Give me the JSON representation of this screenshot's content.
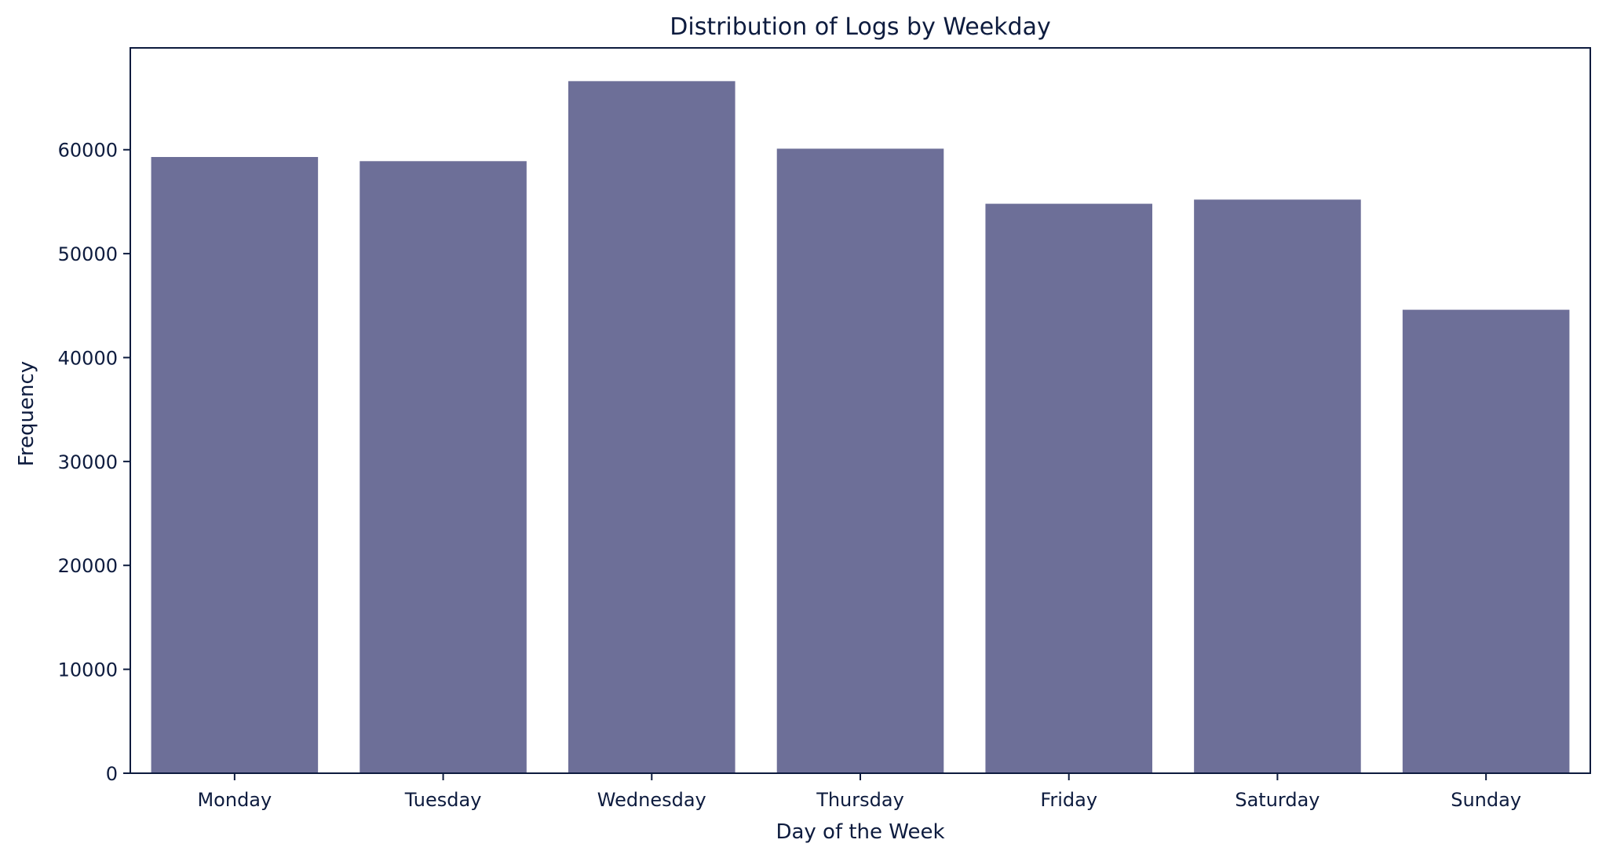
{
  "chart_data": {
    "type": "bar",
    "title": "Distribution of Logs by Weekday",
    "xlabel": "Day of the Week",
    "ylabel": "Frequency",
    "categories": [
      "Monday",
      "Tuesday",
      "Wednesday",
      "Thursday",
      "Friday",
      "Saturday",
      "Sunday"
    ],
    "values": [
      59300,
      58900,
      66600,
      60100,
      54800,
      55200,
      44600
    ],
    "ylim": [
      0,
      69800
    ],
    "yticks": [
      0,
      10000,
      20000,
      30000,
      40000,
      50000,
      60000
    ],
    "ytick_labels": [
      "0",
      "10000",
      "20000",
      "30000",
      "40000",
      "50000",
      "60000"
    ],
    "grid": false,
    "bar_color": "#6d6f98",
    "axis_color": "#0d1b3e"
  }
}
